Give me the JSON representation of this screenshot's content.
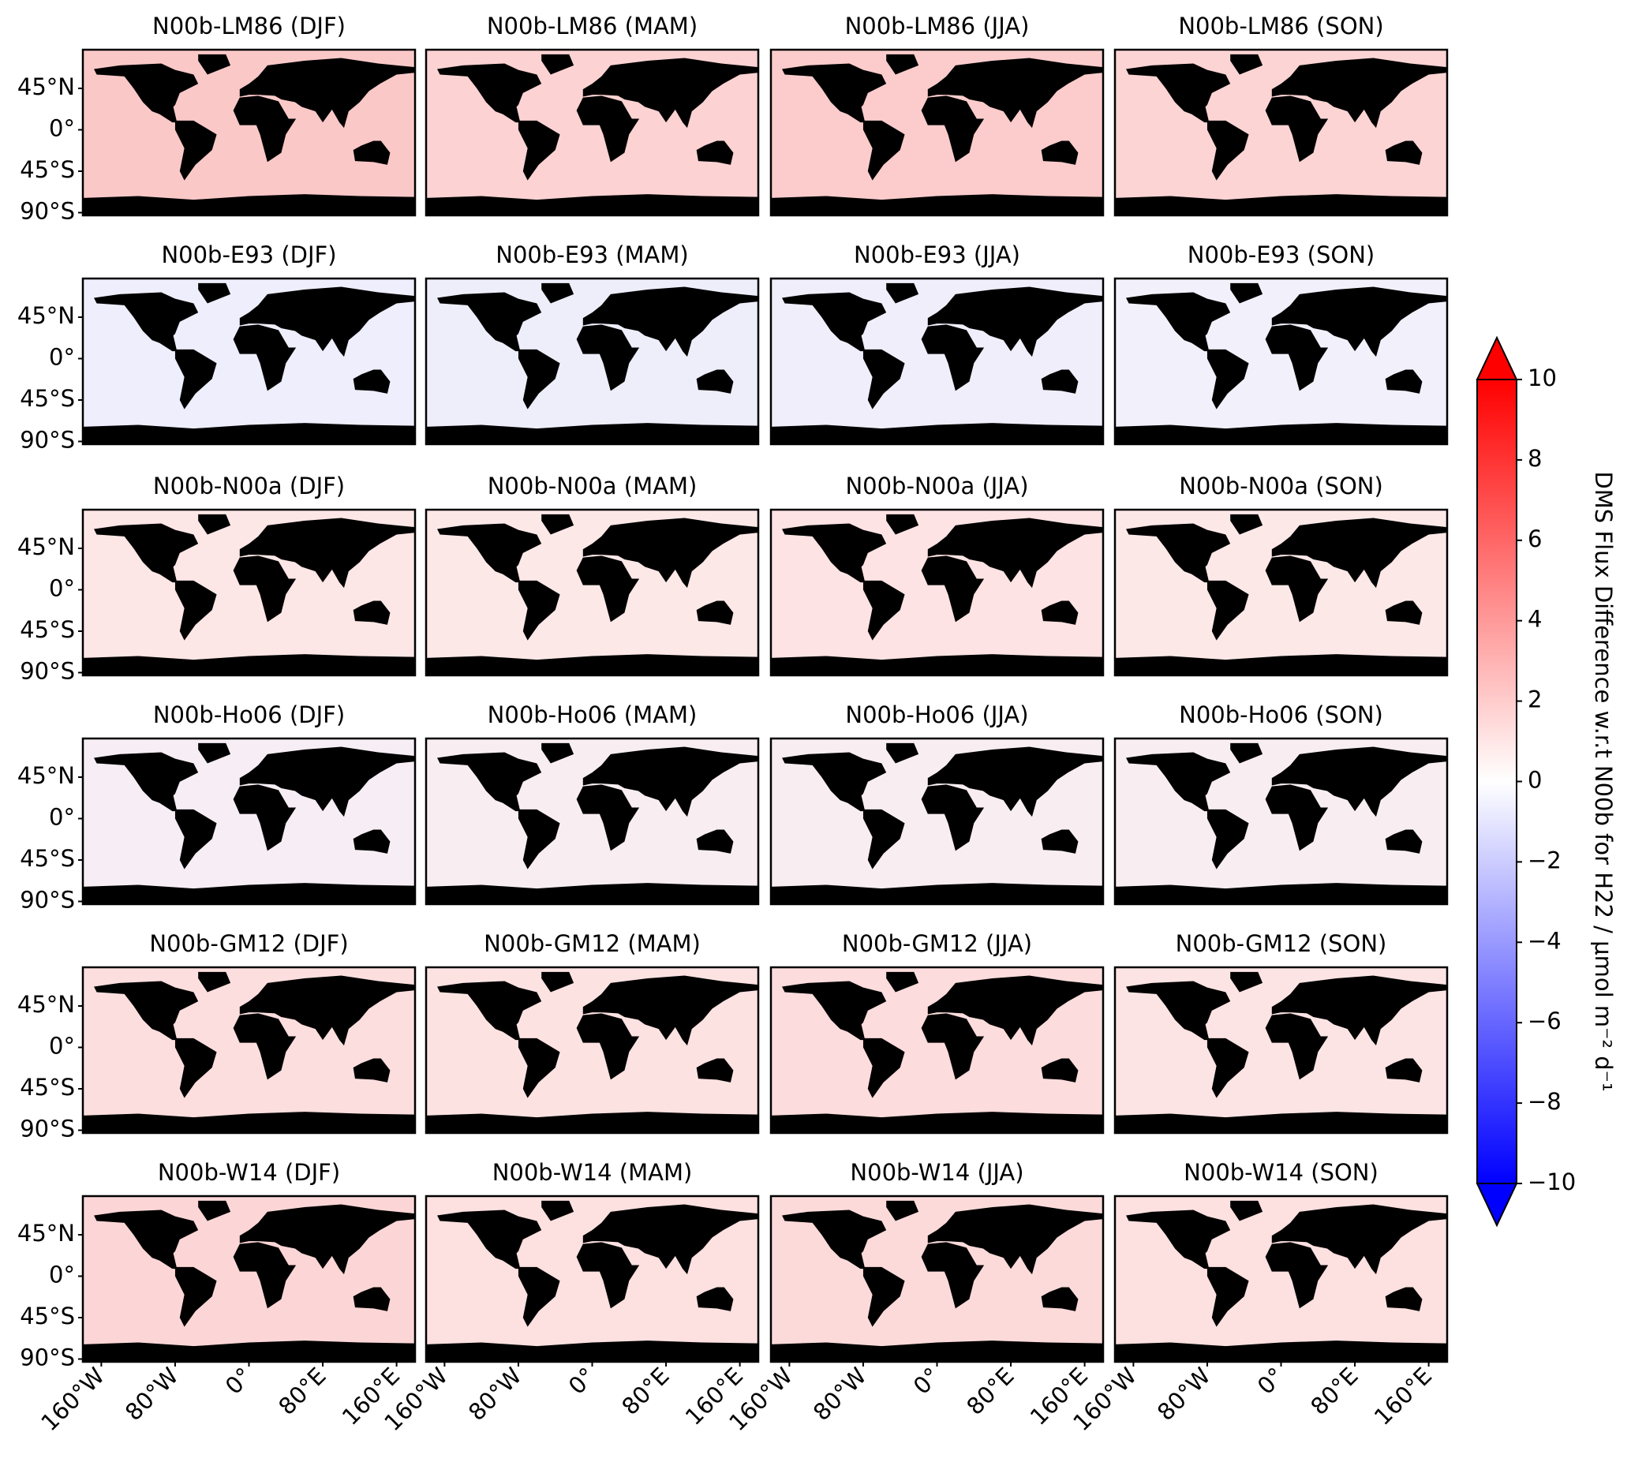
{
  "chart_data": {
    "type": "map",
    "xlim": [
      -180,
      180
    ],
    "ylim": [
      -93,
      87
    ],
    "xticks": [
      {
        "value": -160,
        "label": "160°W"
      },
      {
        "value": -80,
        "label": "80°W"
      },
      {
        "value": 0,
        "label": "0°"
      },
      {
        "value": 80,
        "label": "80°E"
      },
      {
        "value": 160,
        "label": "160°E"
      }
    ],
    "yticks": [
      {
        "value": 45,
        "label": "45°N"
      },
      {
        "value": 0,
        "label": "0°"
      },
      {
        "value": -45,
        "label": "45°S"
      },
      {
        "value": -90,
        "label": "90°S"
      }
    ],
    "panels": [
      {
        "title": "N00b-LM86 (DJF)",
        "color": "#fbc8c8"
      },
      {
        "title": "N00b-LM86 (MAM)",
        "color": "#fcd2d2"
      },
      {
        "title": "N00b-LM86 (JJA)",
        "color": "#fccccc"
      },
      {
        "title": "N00b-LM86 (SON)",
        "color": "#fcd4d4"
      },
      {
        "title": "N00b-E93 (DJF)",
        "color": "#eeeefc"
      },
      {
        "title": "N00b-E93 (MAM)",
        "color": "#eeeefb"
      },
      {
        "title": "N00b-E93 (JJA)",
        "color": "#f0eefa"
      },
      {
        "title": "N00b-E93 (SON)",
        "color": "#f2f0fb"
      },
      {
        "title": "N00b-N00a (DJF)",
        "color": "#fde6e6"
      },
      {
        "title": "N00b-N00a (MAM)",
        "color": "#fde8e8"
      },
      {
        "title": "N00b-N00a (JJA)",
        "color": "#fde3e3"
      },
      {
        "title": "N00b-N00a (SON)",
        "color": "#fde8e8"
      },
      {
        "title": "N00b-Ho06 (DJF)",
        "color": "#f6eef4"
      },
      {
        "title": "N00b-Ho06 (MAM)",
        "color": "#f8eef2"
      },
      {
        "title": "N00b-Ho06 (JJA)",
        "color": "#f8eef2"
      },
      {
        "title": "N00b-Ho06 (SON)",
        "color": "#f8eef2"
      },
      {
        "title": "N00b-GM12 (DJF)",
        "color": "#fcdede"
      },
      {
        "title": "N00b-GM12 (MAM)",
        "color": "#fde2e2"
      },
      {
        "title": "N00b-GM12 (JJA)",
        "color": "#fcdcdc"
      },
      {
        "title": "N00b-GM12 (SON)",
        "color": "#fde4e4"
      },
      {
        "title": "N00b-W14 (DJF)",
        "color": "#fcd6d6"
      },
      {
        "title": "N00b-W14 (MAM)",
        "color": "#fde0e0"
      },
      {
        "title": "N00b-W14 (JJA)",
        "color": "#fcdada"
      },
      {
        "title": "N00b-W14 (SON)",
        "color": "#fde0e0"
      }
    ],
    "colorbar": {
      "label": "DMS Flux Difference w.r.t N00b for H22 / μmol m⁻² d⁻¹",
      "lim": [
        -10,
        10
      ],
      "colors": [
        "#0000ff",
        "#ffffff",
        "#ff0000"
      ],
      "ticks": [
        {
          "value": -10,
          "label": "−10"
        },
        {
          "value": -8,
          "label": "−8"
        },
        {
          "value": -6,
          "label": "−6"
        },
        {
          "value": -4,
          "label": "−4"
        },
        {
          "value": -2,
          "label": "−2"
        },
        0,
        2,
        4,
        6,
        8,
        10
      ]
    }
  }
}
